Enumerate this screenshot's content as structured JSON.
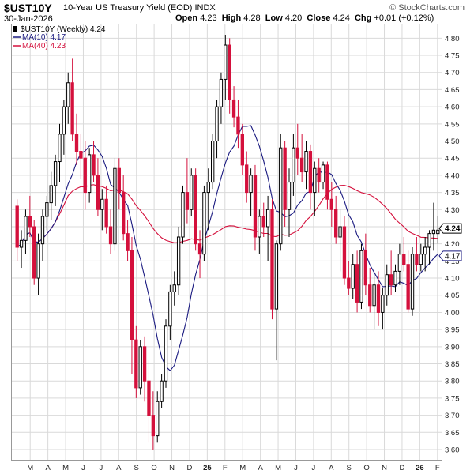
{
  "header": {
    "ticker": "$UST10Y",
    "subtitle": "10-Year US Treasury Yield (EOD)  INDX",
    "date": "30-Jan-2026",
    "open_label": "Open",
    "open": "4.23",
    "high_label": "High",
    "high": "4.28",
    "low_label": "Low",
    "low": "4.20",
    "close_label": "Close",
    "close": "4.24",
    "chg_label": "Chg",
    "chg": "+0.01 (+0.12%)",
    "watermark": "© StockCharts.com"
  },
  "legend": {
    "main": "$UST10Y (Weekly) 4.24",
    "ma10": "MA(10) 4.17",
    "ma40": "MA(40) 4.23"
  },
  "colors": {
    "up": "#000000",
    "down": "#d4103c",
    "ma10": "#1a1a80",
    "ma40": "#d4103c",
    "grid": "#d9d9d9"
  },
  "chart_data": {
    "type": "candlestick",
    "ylim": [
      3.57,
      4.84
    ],
    "y_ticks": [
      3.6,
      3.65,
      3.7,
      3.75,
      3.8,
      3.85,
      3.9,
      3.95,
      4.0,
      4.05,
      4.1,
      4.15,
      4.2,
      4.25,
      4.3,
      4.35,
      4.4,
      4.45,
      4.5,
      4.55,
      4.6,
      4.65,
      4.7,
      4.75,
      4.8
    ],
    "x_labels": [
      "M",
      "A",
      "M",
      "J",
      "J",
      "A",
      "S",
      "O",
      "N",
      "D",
      "25",
      "F",
      "M",
      "A",
      "M",
      "J",
      "J",
      "A",
      "S",
      "O",
      "N",
      "D",
      "26",
      "F"
    ],
    "last_price_label": "4.24",
    "ma10_last_label": "4.17",
    "candles": [
      [
        4.31,
        4.33,
        4.15,
        4.19
      ],
      [
        4.19,
        4.24,
        4.13,
        4.21
      ],
      [
        4.21,
        4.3,
        4.17,
        4.28
      ],
      [
        4.28,
        4.34,
        4.22,
        4.25
      ],
      [
        4.25,
        4.27,
        4.08,
        4.1
      ],
      [
        4.1,
        4.23,
        4.05,
        4.2
      ],
      [
        4.2,
        4.3,
        4.15,
        4.28
      ],
      [
        4.28,
        4.34,
        4.24,
        4.32
      ],
      [
        4.32,
        4.41,
        4.27,
        4.37
      ],
      [
        4.37,
        4.46,
        4.31,
        4.44
      ],
      [
        4.44,
        4.55,
        4.38,
        4.52
      ],
      [
        4.52,
        4.62,
        4.46,
        4.6
      ],
      [
        4.6,
        4.7,
        4.55,
        4.67
      ],
      [
        4.67,
        4.74,
        4.5,
        4.52
      ],
      [
        4.52,
        4.58,
        4.43,
        4.47
      ],
      [
        4.47,
        4.52,
        4.39,
        4.45
      ],
      [
        4.45,
        4.5,
        4.3,
        4.35
      ],
      [
        4.35,
        4.48,
        4.32,
        4.46
      ],
      [
        4.46,
        4.5,
        4.38,
        4.4
      ],
      [
        4.4,
        4.45,
        4.28,
        4.3
      ],
      [
        4.3,
        4.36,
        4.24,
        4.33
      ],
      [
        4.33,
        4.37,
        4.23,
        4.25
      ],
      [
        4.25,
        4.3,
        4.17,
        4.2
      ],
      [
        4.2,
        4.45,
        4.18,
        4.42
      ],
      [
        4.42,
        4.45,
        4.3,
        4.35
      ],
      [
        4.35,
        4.4,
        4.21,
        4.23
      ],
      [
        4.23,
        4.27,
        4.15,
        4.18
      ],
      [
        4.18,
        4.22,
        3.82,
        3.92
      ],
      [
        3.92,
        3.96,
        3.75,
        3.78
      ],
      [
        3.78,
        3.92,
        3.76,
        3.9
      ],
      [
        3.9,
        3.93,
        3.74,
        3.8
      ],
      [
        3.8,
        3.86,
        3.62,
        3.7
      ],
      [
        3.7,
        3.77,
        3.6,
        3.64
      ],
      [
        3.64,
        3.77,
        3.62,
        3.74
      ],
      [
        3.74,
        3.82,
        3.72,
        3.8
      ],
      [
        3.8,
        3.98,
        3.78,
        3.96
      ],
      [
        3.96,
        4.08,
        3.92,
        4.06
      ],
      [
        4.06,
        4.12,
        4.02,
        4.08
      ],
      [
        4.08,
        4.25,
        4.05,
        4.22
      ],
      [
        4.22,
        4.37,
        4.2,
        4.35
      ],
      [
        4.35,
        4.45,
        4.26,
        4.3
      ],
      [
        4.3,
        4.42,
        4.28,
        4.4
      ],
      [
        4.4,
        4.42,
        4.18,
        4.2
      ],
      [
        4.2,
        4.24,
        4.1,
        4.17
      ],
      [
        4.17,
        4.37,
        4.15,
        4.35
      ],
      [
        4.35,
        4.42,
        4.24,
        4.38
      ],
      [
        4.38,
        4.52,
        4.36,
        4.5
      ],
      [
        4.5,
        4.62,
        4.45,
        4.6
      ],
      [
        4.6,
        4.7,
        4.55,
        4.68
      ],
      [
        4.68,
        4.81,
        4.62,
        4.78
      ],
      [
        4.78,
        4.8,
        4.58,
        4.62
      ],
      [
        4.62,
        4.66,
        4.54,
        4.57
      ],
      [
        4.57,
        4.62,
        4.48,
        4.52
      ],
      [
        4.52,
        4.55,
        4.4,
        4.43
      ],
      [
        4.43,
        4.47,
        4.32,
        4.35
      ],
      [
        4.35,
        4.42,
        4.28,
        4.4
      ],
      [
        4.4,
        4.43,
        4.18,
        4.22
      ],
      [
        4.22,
        4.3,
        4.17,
        4.28
      ],
      [
        4.28,
        4.32,
        4.22,
        4.25
      ],
      [
        4.25,
        4.34,
        4.15,
        4.3
      ],
      [
        4.3,
        4.33,
        3.98,
        4.01
      ],
      [
        4.01,
        4.21,
        3.86,
        4.2
      ],
      [
        4.2,
        4.52,
        4.18,
        4.48
      ],
      [
        4.48,
        4.5,
        4.25,
        4.3
      ],
      [
        4.3,
        4.42,
        4.22,
        4.38
      ],
      [
        4.38,
        4.52,
        4.34,
        4.48
      ],
      [
        4.48,
        4.55,
        4.4,
        4.45
      ],
      [
        4.45,
        4.52,
        4.38,
        4.41
      ],
      [
        4.41,
        4.5,
        4.36,
        4.47
      ],
      [
        4.47,
        4.49,
        4.3,
        4.35
      ],
      [
        4.35,
        4.44,
        4.28,
        4.42
      ],
      [
        4.42,
        4.45,
        4.35,
        4.38
      ],
      [
        4.38,
        4.44,
        4.36,
        4.43
      ],
      [
        4.43,
        4.44,
        4.3,
        4.33
      ],
      [
        4.33,
        4.38,
        4.25,
        4.3
      ],
      [
        4.3,
        4.34,
        4.2,
        4.22
      ],
      [
        4.22,
        4.3,
        4.12,
        4.25
      ],
      [
        4.25,
        4.28,
        4.08,
        4.1
      ],
      [
        4.1,
        4.15,
        4.05,
        4.07
      ],
      [
        4.07,
        4.17,
        4.04,
        4.14
      ],
      [
        4.14,
        4.18,
        4.0,
        4.03
      ],
      [
        4.03,
        4.2,
        4.01,
        4.18
      ],
      [
        4.18,
        4.23,
        4.05,
        4.08
      ],
      [
        4.08,
        4.13,
        4.0,
        4.02
      ],
      [
        4.02,
        4.11,
        3.95,
        4.08
      ],
      [
        4.08,
        4.12,
        3.96,
        4.0
      ],
      [
        4.0,
        4.07,
        3.95,
        4.05
      ],
      [
        4.05,
        4.14,
        4.02,
        4.11
      ],
      [
        4.11,
        4.18,
        4.05,
        4.08
      ],
      [
        4.08,
        4.14,
        4.06,
        4.12
      ],
      [
        4.12,
        4.2,
        4.08,
        4.17
      ],
      [
        4.17,
        4.22,
        4.12,
        4.14
      ],
      [
        4.14,
        4.18,
        4.0,
        4.01
      ],
      [
        4.01,
        4.19,
        3.99,
        4.17
      ],
      [
        4.17,
        4.22,
        4.12,
        4.14
      ],
      [
        4.14,
        4.2,
        4.12,
        4.17
      ],
      [
        4.17,
        4.22,
        4.12,
        4.19
      ],
      [
        4.19,
        4.24,
        4.14,
        4.23
      ],
      [
        4.23,
        4.32,
        4.18,
        4.24
      ],
      [
        4.23,
        4.28,
        4.2,
        4.24
      ]
    ]
  }
}
